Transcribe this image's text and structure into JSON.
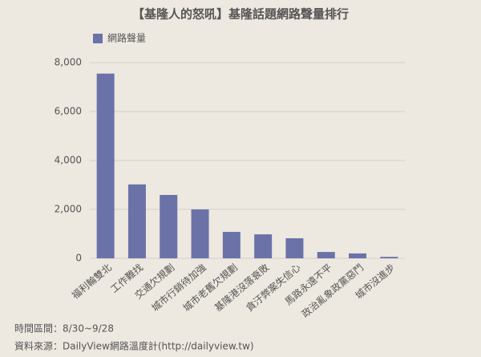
{
  "chart_data": {
    "type": "bar",
    "title": "【基隆人的怒吼】基隆話題網路聲量排行",
    "categories": [
      "福利輪雙北",
      "工作難找",
      "交通欠規劃",
      "城市行銷待加強",
      "城市老舊欠規劃",
      "基隆港沒落衰敗",
      "貪汙弊案失信心",
      "馬路永遠不平",
      "政治亂象政黨惡鬥",
      "城市沒進步"
    ],
    "series": [
      {
        "name": "網路聲量",
        "color": "#6b72a8",
        "values": [
          7550,
          3020,
          2590,
          2000,
          1080,
          980,
          820,
          260,
          200,
          60
        ]
      }
    ],
    "ylim": [
      0,
      8000
    ],
    "yticks": [
      0,
      {
        "value": 2000,
        "label": "2,000"
      },
      {
        "value": 4000,
        "label": "4,000"
      },
      {
        "value": 6000,
        "label": "6,000"
      },
      {
        "value": 8000,
        "label": "8,000"
      }
    ],
    "grid": true,
    "footnotes": [
      "時間區間：8/30~9/28",
      "資料來源：DailyView網路溫度計(http://dailyview.tw)"
    ]
  }
}
